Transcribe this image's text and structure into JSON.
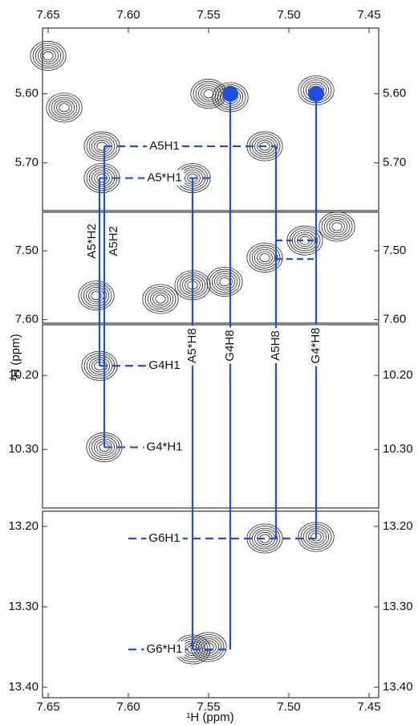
{
  "chart_data": {
    "type": "contour",
    "x_label": "¹H (ppm)",
    "y_label": "¹H (ppm)",
    "xlim": [
      7.6535,
      7.444
    ],
    "xticks": [
      {
        "value": 7.65,
        "label": "7.65"
      },
      {
        "value": 7.6,
        "label": "7.60"
      },
      {
        "value": 7.55,
        "label": "7.55"
      },
      {
        "value": 7.5,
        "label": "7.50"
      },
      {
        "value": 7.45,
        "label": "7.45"
      }
    ],
    "color": "#1f4fe0",
    "panels": [
      {
        "ylim": [
          5.505,
          5.769
        ],
        "yticks": [
          {
            "value": 5.6,
            "label": "5.60"
          },
          {
            "value": 5.7,
            "label": "5.70"
          }
        ],
        "peaks": {
          "x": [
            7.6165,
            7.6165,
            7.55,
            7.5365,
            7.483,
            7.515,
            7.56,
            7.65,
            7.64
          ],
          "y": [
            5.676,
            5.722,
            5.6,
            5.605,
            5.595,
            5.676,
            5.722,
            5.545,
            5.62
          ]
        },
        "dots": {
          "x": [
            7.5365,
            7.483
          ],
          "y": [
            5.6,
            5.6
          ]
        },
        "labels": [
          {
            "text": "A5H1",
            "y": 5.676,
            "x1": 7.615,
            "x2": 7.508
          },
          {
            "text": "A5*H1",
            "y": 5.722,
            "x1": 7.618,
            "x2": 7.547
          }
        ]
      },
      {
        "ylim": [
          7.444,
          7.605
        ],
        "yticks": [
          {
            "value": 7.5,
            "label": "7.50"
          },
          {
            "value": 7.6,
            "label": "7.60"
          }
        ],
        "peaks": {
          "x": [
            7.62,
            7.58,
            7.56,
            7.54,
            7.515,
            7.49,
            7.47
          ],
          "y": [
            7.565,
            7.57,
            7.55,
            7.545,
            7.51,
            7.485,
            7.465
          ]
        },
        "links": [
          {
            "y": 7.485,
            "x1": 7.508,
            "x2": 7.483
          },
          {
            "y": 7.512,
            "x1": 7.508,
            "x2": 7.483
          }
        ]
      },
      {
        "ylim": [
          10.1315,
          10.379
        ],
        "yticks": [
          {
            "value": 10.2,
            "label": "10.20"
          },
          {
            "value": 10.3,
            "label": "10.30"
          }
        ],
        "peaks": {
          "x": [
            7.618,
            7.615
          ],
          "y": [
            10.187,
            10.297
          ]
        },
        "labels": [
          {
            "text": "G4H1",
            "y": 10.187,
            "x1": 7.618,
            "x2": 7.575
          },
          {
            "text": "G4*H1",
            "y": 10.297,
            "x1": 7.615,
            "x2": 7.575
          }
        ]
      },
      {
        "ylim": [
          13.181,
          13.413
        ],
        "yticks": [
          {
            "value": 13.2,
            "label": "13.20"
          },
          {
            "value": 13.3,
            "label": "13.30"
          },
          {
            "value": 13.4,
            "label": "13.40"
          }
        ],
        "peaks": {
          "x": [
            7.515,
            7.483,
            7.55,
            7.56
          ],
          "y": [
            13.215,
            13.213,
            13.35,
            13.353
          ]
        },
        "labels": [
          {
            "text": "G6H1",
            "y": 13.215,
            "x1": 7.6,
            "x2": 7.483
          },
          {
            "text": "G6*H1",
            "y": 13.353,
            "x1": 7.6,
            "x2": 7.5365
          }
        ]
      }
    ],
    "verticals": [
      {
        "label": "A5*H2",
        "x": 7.618,
        "y_from": 5.722,
        "y_to": 10.187
      },
      {
        "label": "A5H2",
        "x": 7.615,
        "y_from": 5.676,
        "y_to": 10.297
      },
      {
        "label": "A5*H8",
        "x": 7.56,
        "y_from": 5.722,
        "y_to": 13.353
      },
      {
        "label": "G4H8",
        "x": 7.5365,
        "y_from": 5.6,
        "y_to": 13.353
      },
      {
        "label": "A5H8",
        "x": 7.508,
        "y_from": 5.676,
        "y_to": 13.215
      },
      {
        "label": "G4*H8",
        "x": 7.483,
        "y_from": 5.6,
        "y_to": 13.215
      }
    ]
  }
}
